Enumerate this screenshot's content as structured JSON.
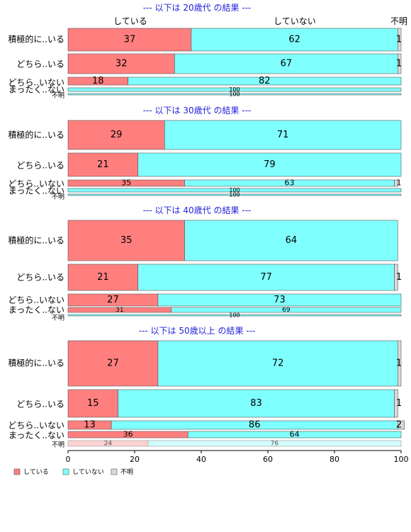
{
  "legend": {
    "items": [
      {
        "label": "している",
        "color": "#FF7F7F"
      },
      {
        "label": "していない",
        "color": "#80FFFF"
      },
      {
        "label": "不明",
        "color": "#D9D9D9"
      }
    ]
  },
  "chart_data": {
    "type": "bar",
    "orientation": "horizontal",
    "stacked": "percent",
    "xlim": [
      0,
      100
    ],
    "xticks": [
      "0",
      "20",
      "40",
      "60",
      "80",
      "100"
    ],
    "top_labels": [
      "している",
      "していない",
      "不明"
    ],
    "series_names": [
      "している",
      "していない",
      "不明"
    ],
    "colors": [
      "#FF7F7F",
      "#80FFFF",
      "#D9D9D9"
    ],
    "categories": [
      "積極的に..いる",
      "どちら..いる",
      "どちら..いない",
      "まったく..ない",
      "不明"
    ],
    "panels": [
      {
        "title": "--- 以下は 20歳代 の結果 ---",
        "rows": [
          {
            "category": "積極的に..いる",
            "values": [
              37,
              62,
              1
            ]
          },
          {
            "category": "どちら..いる",
            "values": [
              32,
              67,
              1
            ]
          },
          {
            "category": "どちら..いない",
            "values": [
              18,
              82,
              0
            ]
          },
          {
            "category": "まったく..ない",
            "values": [
              0,
              100,
              0
            ]
          },
          {
            "category": "不明",
            "values": [
              0,
              100,
              0
            ]
          }
        ]
      },
      {
        "title": "--- 以下は 30歳代 の結果 ---",
        "rows": [
          {
            "category": "積極的に..いる",
            "values": [
              29,
              71,
              0
            ]
          },
          {
            "category": "どちら..いる",
            "values": [
              21,
              79,
              0
            ]
          },
          {
            "category": "どちら..いない",
            "values": [
              35,
              63,
              1
            ]
          },
          {
            "category": "まったく..ない",
            "values": [
              0,
              100,
              0
            ]
          },
          {
            "category": "不明",
            "values": [
              0,
              100,
              0
            ]
          }
        ]
      },
      {
        "title": "--- 以下は 40歳代 の結果 ---",
        "rows": [
          {
            "category": "積極的に..いる",
            "values": [
              35,
              64,
              0
            ]
          },
          {
            "category": "どちら..いる",
            "values": [
              21,
              77,
              1
            ]
          },
          {
            "category": "どちら..いない",
            "values": [
              27,
              73,
              0
            ]
          },
          {
            "category": "まったく..ない",
            "values": [
              31,
              69,
              0
            ]
          },
          {
            "category": "不明",
            "values": [
              0,
              100,
              0
            ]
          }
        ]
      },
      {
        "title": "--- 以下は 50歳以上 の結果 ---",
        "rows": [
          {
            "category": "積極的に..いる",
            "values": [
              27,
              72,
              1
            ]
          },
          {
            "category": "どちら..いる",
            "values": [
              15,
              83,
              1
            ]
          },
          {
            "category": "どちら..いない",
            "values": [
              13,
              86,
              2
            ]
          },
          {
            "category": "まったく..ない",
            "values": [
              36,
              64,
              0
            ]
          },
          {
            "category": "不明",
            "values": [
              24,
              76,
              0
            ],
            "faded": true
          }
        ]
      }
    ]
  }
}
